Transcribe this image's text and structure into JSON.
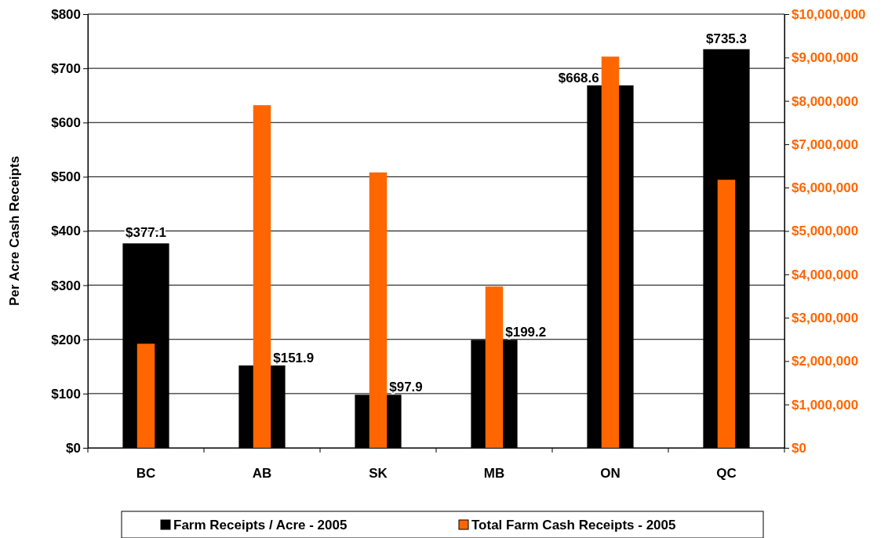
{
  "chart_data": {
    "type": "bar",
    "ylabel": "Per Acre Cash Receipts",
    "categories": [
      "BC",
      "AB",
      "SK",
      "MB",
      "ON",
      "QC"
    ],
    "series": [
      {
        "name": "Farm Receipts / Acre - 2005",
        "color": "#000000",
        "values": [
          377.1,
          151.9,
          97.9,
          199.2,
          668.6,
          735.3
        ],
        "value_labels": [
          "$377.1",
          "$151.9",
          "$97.9",
          "$199.2",
          "$668.6",
          "$735.3"
        ]
      },
      {
        "name": "Total Farm Cash Receipts - 2005",
        "color": "#ff6600",
        "axis": "y2",
        "values": [
          2400000,
          7900000,
          6350000,
          3720000,
          9020000,
          6180000
        ]
      }
    ],
    "ylim": [
      0,
      800
    ],
    "yticks": [
      {
        "value": 0,
        "label": "$0"
      },
      {
        "value": 100,
        "label": "$100"
      },
      {
        "value": 200,
        "label": "$200"
      },
      {
        "value": 300,
        "label": "$300"
      },
      {
        "value": 400,
        "label": "$400"
      },
      {
        "value": 500,
        "label": "$500"
      },
      {
        "value": 600,
        "label": "$600"
      },
      {
        "value": 700,
        "label": "$700"
      },
      {
        "value": 800,
        "label": "$800"
      }
    ],
    "y2lim": [
      0,
      10000000
    ],
    "y2ticks": [
      {
        "value": 0,
        "label": "$0"
      },
      {
        "value": 1000000,
        "label": "$1,000,000"
      },
      {
        "value": 2000000,
        "label": "$2,000,000"
      },
      {
        "value": 3000000,
        "label": "$3,000,000"
      },
      {
        "value": 4000000,
        "label": "$4,000,000"
      },
      {
        "value": 5000000,
        "label": "$5,000,000"
      },
      {
        "value": 6000000,
        "label": "$6,000,000"
      },
      {
        "value": 7000000,
        "label": "$7,000,000"
      },
      {
        "value": 8000000,
        "label": "$8,000,000"
      },
      {
        "value": 9000000,
        "label": "$9,000,000"
      },
      {
        "value": 10000000,
        "label": "$10,000,000"
      }
    ],
    "grid": "y",
    "legend": "bottom"
  }
}
